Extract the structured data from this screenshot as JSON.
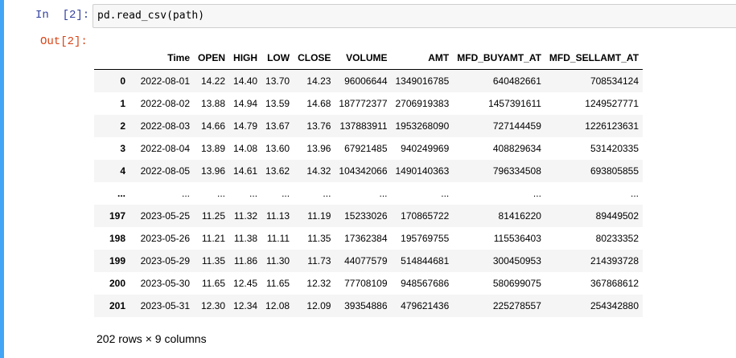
{
  "cell": {
    "in_prompt": "In  [2]:",
    "out_prompt": "Out[2]:",
    "code": "pd.read_csv(path)"
  },
  "table": {
    "columns": [
      "",
      "Time",
      "OPEN",
      "HIGH",
      "LOW",
      "CLOSE",
      "VOLUME",
      "AMT",
      "MFD_BUYAMT_AT",
      "MFD_SELLAMT_AT"
    ],
    "rows": [
      [
        "0",
        "2022-08-01",
        "14.22",
        "14.40",
        "13.70",
        "14.23",
        "96006644",
        "1349016785",
        "640482661",
        "708534124"
      ],
      [
        "1",
        "2022-08-02",
        "13.88",
        "14.94",
        "13.59",
        "14.68",
        "187772377",
        "2706919383",
        "1457391611",
        "1249527771"
      ],
      [
        "2",
        "2022-08-03",
        "14.66",
        "14.79",
        "13.67",
        "13.76",
        "137883911",
        "1953268090",
        "727144459",
        "1226123631"
      ],
      [
        "3",
        "2022-08-04",
        "13.89",
        "14.08",
        "13.60",
        "13.96",
        "67921485",
        "940249969",
        "408829634",
        "531420335"
      ],
      [
        "4",
        "2022-08-05",
        "13.96",
        "14.61",
        "13.62",
        "14.32",
        "104342066",
        "1490140363",
        "796334508",
        "693805855"
      ],
      [
        "...",
        "...",
        "...",
        "...",
        "...",
        "...",
        "...",
        "...",
        "...",
        "..."
      ],
      [
        "197",
        "2023-05-25",
        "11.25",
        "11.32",
        "11.13",
        "11.19",
        "15233026",
        "170865722",
        "81416220",
        "89449502"
      ],
      [
        "198",
        "2023-05-26",
        "11.21",
        "11.38",
        "11.11",
        "11.35",
        "17362384",
        "195769755",
        "115536403",
        "80233352"
      ],
      [
        "199",
        "2023-05-29",
        "11.35",
        "11.86",
        "11.30",
        "11.73",
        "44077579",
        "514844681",
        "300450953",
        "214393728"
      ],
      [
        "200",
        "2023-05-30",
        "11.65",
        "12.45",
        "11.65",
        "12.32",
        "77708109",
        "948567686",
        "580699075",
        "367868612"
      ],
      [
        "201",
        "2023-05-31",
        "12.30",
        "12.34",
        "12.08",
        "12.09",
        "39354886",
        "479621436",
        "225278557",
        "254342880"
      ]
    ]
  },
  "summary": "202 rows × 9 columns",
  "colors": {
    "cell_bar": "#42a5f5",
    "in_prompt": "#303f9f",
    "out_prompt": "#d84315",
    "stripe": "#f5f5f5"
  }
}
